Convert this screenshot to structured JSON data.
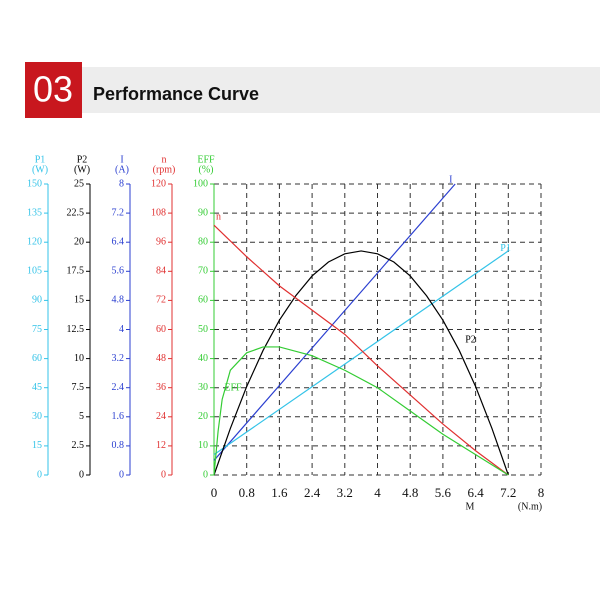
{
  "header": {
    "number": "03",
    "title": "Performance Curve"
  },
  "chart_data": {
    "type": "line",
    "grid": true,
    "xlabel": "M",
    "xunit": "(N.m)",
    "xlim": [
      0,
      8
    ],
    "xticks": [
      0,
      0.8,
      1.6,
      2.4,
      3.2,
      4,
      4.8,
      5.6,
      6.4,
      7.2,
      8
    ],
    "axes": [
      {
        "name": "P1",
        "unit": "(W)",
        "color": "#33c3e8",
        "ylim": [
          0,
          150
        ],
        "yticks": [
          0,
          15,
          30,
          45,
          60,
          75,
          90,
          105,
          120,
          135,
          150
        ]
      },
      {
        "name": "P2",
        "unit": "(W)",
        "color": "#000000",
        "ylim": [
          0,
          25
        ],
        "yticks": [
          0,
          2.5,
          5,
          7.5,
          10,
          12.5,
          15,
          17.5,
          20,
          22.5,
          25
        ]
      },
      {
        "name": "I",
        "unit": "(A)",
        "color": "#2b3fd0",
        "ylim": [
          0,
          8
        ],
        "yticks": [
          0,
          0.8,
          1.6,
          2.4,
          3.2,
          4,
          4.8,
          5.6,
          6.4,
          7.2,
          8
        ]
      },
      {
        "name": "n",
        "unit": "(rpm)",
        "color": "#e03030",
        "ylim": [
          0,
          120
        ],
        "yticks": [
          0,
          12,
          24,
          36,
          48,
          60,
          72,
          84,
          96,
          108,
          120
        ]
      },
      {
        "name": "EFF",
        "unit": "(%)",
        "color": "#33cc33",
        "ylim": [
          0,
          100
        ],
        "yticks": [
          0,
          10,
          20,
          30,
          40,
          50,
          60,
          70,
          80,
          90,
          100
        ]
      }
    ],
    "series": [
      {
        "name": "I",
        "color": "#2b3fd0",
        "axis": 2,
        "x": [
          0,
          5.9
        ],
        "values": [
          0.4,
          8
        ]
      },
      {
        "name": "P1",
        "color": "#33c3e8",
        "axis": 0,
        "x": [
          0,
          7.2
        ],
        "values": [
          10.5,
          115.5
        ]
      },
      {
        "name": "P2",
        "color": "#000000",
        "axis": 1,
        "x": [
          0,
          0.4,
          0.8,
          1.2,
          1.6,
          2,
          2.4,
          2.8,
          3.2,
          3.6,
          4,
          4.4,
          4.8,
          5.2,
          5.6,
          6,
          6.4,
          6.8,
          7.2
        ],
        "values": [
          0,
          4.0,
          7.6,
          10.7,
          13.3,
          15.4,
          17.1,
          18.3,
          19.0,
          19.25,
          19.0,
          18.3,
          17.1,
          15.4,
          13.3,
          10.7,
          7.6,
          4.0,
          0
        ]
      },
      {
        "name": "n",
        "color": "#e03030",
        "axis": 3,
        "x": [
          0,
          0.8,
          1.6,
          2.4,
          3.2,
          4,
          4.8,
          5.6,
          6.4,
          7.2
        ],
        "values": [
          103,
          90,
          78,
          68,
          58,
          45,
          33,
          21,
          10,
          0
        ]
      },
      {
        "name": "EFF",
        "color": "#33cc33",
        "axis": 4,
        "x": [
          0,
          0.1,
          0.2,
          0.4,
          0.8,
          1.2,
          1.6,
          2.4,
          3.2,
          4,
          4.8,
          5.6,
          6.4,
          7.2
        ],
        "values": [
          0,
          15,
          26,
          36,
          42,
          44,
          44,
          41,
          36,
          30,
          22,
          14,
          7,
          0
        ]
      }
    ]
  }
}
